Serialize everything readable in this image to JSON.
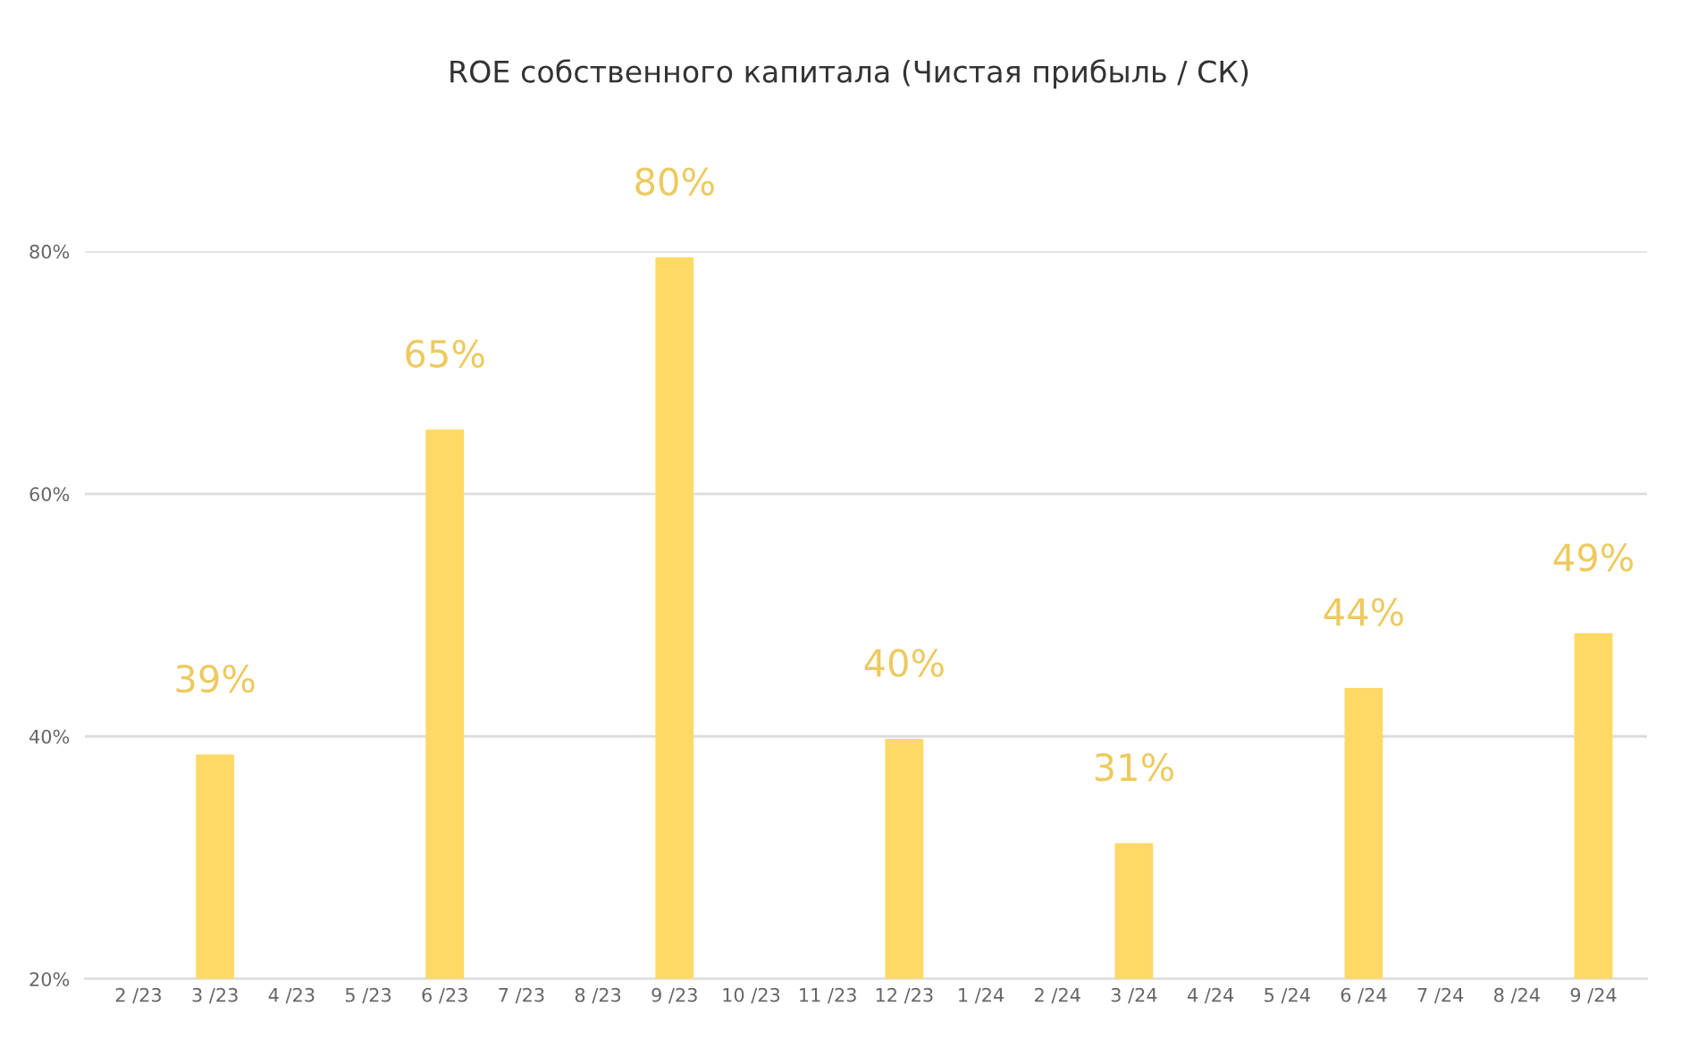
{
  "chart_data": {
    "type": "bar",
    "title": "ROE собственного капитала (Чистая прибыль / СК)",
    "categories": [
      "2 /23",
      "3 /23",
      "4 /23",
      "5 /23",
      "6 /23",
      "7 /23",
      "8 /23",
      "9 /23",
      "10 /23",
      "11 /23",
      "12 /23",
      "1 /24",
      "2 /24",
      "3 /24",
      "4 /24",
      "5 /24",
      "6 /24",
      "7 /24",
      "8 /24",
      "9 /24"
    ],
    "series": [
      {
        "color": "#ffd966",
        "values": [
          null,
          38.5,
          null,
          null,
          65.3,
          null,
          null,
          79.5,
          null,
          null,
          39.8,
          null,
          null,
          31.2,
          null,
          null,
          44.0,
          null,
          null,
          48.5
        ],
        "value_labels": [
          null,
          "39%",
          null,
          null,
          "65%",
          null,
          null,
          "80%",
          null,
          null,
          "40%",
          null,
          null,
          "31%",
          null,
          null,
          "44%",
          null,
          null,
          "49%"
        ]
      }
    ],
    "ylim": [
      20,
      80
    ],
    "yticks": [
      {
        "value": 20,
        "label": "20%"
      },
      {
        "value": 40,
        "label": "40%"
      },
      {
        "value": 60,
        "label": "60%"
      },
      {
        "value": 80,
        "label": "80%"
      }
    ],
    "grid": "y",
    "legend": false
  }
}
